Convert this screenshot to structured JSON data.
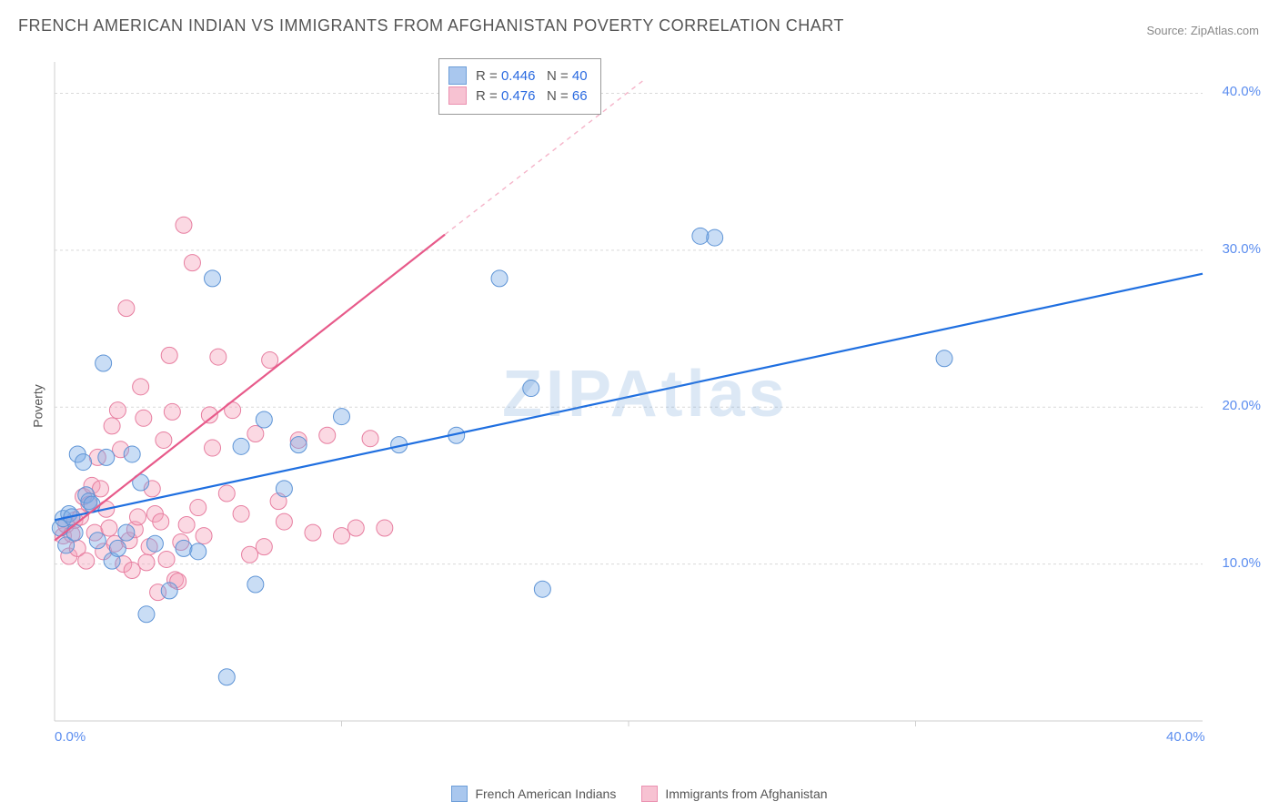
{
  "title": "FRENCH AMERICAN INDIAN VS IMMIGRANTS FROM AFGHANISTAN POVERTY CORRELATION CHART",
  "source": {
    "prefix": "Source: ",
    "name": "ZipAtlas.com"
  },
  "watermark": "ZIPAtlas",
  "y_axis_label": "Poverty",
  "chart": {
    "type": "scatter",
    "background_color": "#ffffff",
    "grid_color": "#d9d9d9",
    "axis_line_color": "#cfcfcf",
    "xlim": [
      0,
      40
    ],
    "ylim": [
      0,
      42
    ],
    "xtick_values": [
      0,
      40
    ],
    "xtick_labels": [
      "0.0%",
      "40.0%"
    ],
    "ytick_values": [
      10,
      20,
      30,
      40
    ],
    "ytick_labels": [
      "10.0%",
      "20.0%",
      "30.0%",
      "40.0%"
    ],
    "tick_label_color": "#5b8def",
    "y_label_color": "#555555",
    "marker_radius": 9,
    "marker_stroke_width": 1,
    "trend_line_width": 2.2,
    "series": [
      {
        "key": "blue",
        "label": "French American Indians",
        "fill": "rgba(120,170,230,0.40)",
        "stroke": "#5e94d6",
        "swatch_fill": "#a9c7ee",
        "swatch_border": "#6d9ed8",
        "line_color": "#1f6fe0",
        "line_dash_color": "#1f6fe0",
        "stats": {
          "R": "0.446",
          "N": "40"
        },
        "trend": {
          "x1": 0,
          "y1": 12.8,
          "x2": 40,
          "y2": 28.5
        },
        "points": [
          [
            0.2,
            12.3
          ],
          [
            0.3,
            12.9
          ],
          [
            0.4,
            11.2
          ],
          [
            0.5,
            13.2
          ],
          [
            0.6,
            13.0
          ],
          [
            0.7,
            12.0
          ],
          [
            0.8,
            17.0
          ],
          [
            1.0,
            16.5
          ],
          [
            1.1,
            14.4
          ],
          [
            1.2,
            14.0
          ],
          [
            1.3,
            13.8
          ],
          [
            1.5,
            11.5
          ],
          [
            1.7,
            22.8
          ],
          [
            1.8,
            16.8
          ],
          [
            2.0,
            10.2
          ],
          [
            2.2,
            11.0
          ],
          [
            2.5,
            12.0
          ],
          [
            2.7,
            17.0
          ],
          [
            3.0,
            15.2
          ],
          [
            3.2,
            6.8
          ],
          [
            3.5,
            11.3
          ],
          [
            4.0,
            8.3
          ],
          [
            4.5,
            11.0
          ],
          [
            5.0,
            10.8
          ],
          [
            5.5,
            28.2
          ],
          [
            6.0,
            2.8
          ],
          [
            6.5,
            17.5
          ],
          [
            7.0,
            8.7
          ],
          [
            7.3,
            19.2
          ],
          [
            8.0,
            14.8
          ],
          [
            8.5,
            17.6
          ],
          [
            10.0,
            19.4
          ],
          [
            12.0,
            17.6
          ],
          [
            15.5,
            28.2
          ],
          [
            16.6,
            21.2
          ],
          [
            17.0,
            8.4
          ],
          [
            23.0,
            30.8
          ],
          [
            31.0,
            23.1
          ],
          [
            22.5,
            30.9
          ],
          [
            14.0,
            18.2
          ]
        ]
      },
      {
        "key": "pink",
        "label": "Immigrants from Afghanistan",
        "fill": "rgba(244,160,185,0.40)",
        "stroke": "#e77ea0",
        "swatch_fill": "#f7c2d2",
        "swatch_border": "#eb91b1",
        "line_color": "#e75a8a",
        "line_dash_color": "#f5b4c9",
        "stats": {
          "R": "0.476",
          "N": "66"
        },
        "trend": {
          "x1": 0,
          "y1": 11.5,
          "x2": 13.6,
          "y2": 31.0,
          "dash_x2": 20.5,
          "dash_y2": 40.8
        },
        "points": [
          [
            0.3,
            11.8
          ],
          [
            0.4,
            12.5
          ],
          [
            0.5,
            10.5
          ],
          [
            0.6,
            11.9
          ],
          [
            0.7,
            12.8
          ],
          [
            0.8,
            11.0
          ],
          [
            0.9,
            13.0
          ],
          [
            1.0,
            14.3
          ],
          [
            1.1,
            10.2
          ],
          [
            1.2,
            13.8
          ],
          [
            1.3,
            15.0
          ],
          [
            1.4,
            12.0
          ],
          [
            1.5,
            16.8
          ],
          [
            1.6,
            14.8
          ],
          [
            1.7,
            10.8
          ],
          [
            1.8,
            13.5
          ],
          [
            1.9,
            12.3
          ],
          [
            2.0,
            18.8
          ],
          [
            2.1,
            11.3
          ],
          [
            2.2,
            19.8
          ],
          [
            2.3,
            17.3
          ],
          [
            2.4,
            10.0
          ],
          [
            2.5,
            26.3
          ],
          [
            2.6,
            11.5
          ],
          [
            2.7,
            9.6
          ],
          [
            2.8,
            12.2
          ],
          [
            2.9,
            13.0
          ],
          [
            3.0,
            21.3
          ],
          [
            3.1,
            19.3
          ],
          [
            3.2,
            10.1
          ],
          [
            3.3,
            11.1
          ],
          [
            3.4,
            14.8
          ],
          [
            3.5,
            13.2
          ],
          [
            3.6,
            8.2
          ],
          [
            3.7,
            12.7
          ],
          [
            3.8,
            17.9
          ],
          [
            3.9,
            10.3
          ],
          [
            4.0,
            23.3
          ],
          [
            4.1,
            19.7
          ],
          [
            4.2,
            9.0
          ],
          [
            4.3,
            8.9
          ],
          [
            4.4,
            11.4
          ],
          [
            4.5,
            31.6
          ],
          [
            4.6,
            12.5
          ],
          [
            4.8,
            29.2
          ],
          [
            5.0,
            13.6
          ],
          [
            5.2,
            11.8
          ],
          [
            5.4,
            19.5
          ],
          [
            5.5,
            17.4
          ],
          [
            5.7,
            23.2
          ],
          [
            6.0,
            14.5
          ],
          [
            6.2,
            19.8
          ],
          [
            6.5,
            13.2
          ],
          [
            6.8,
            10.6
          ],
          [
            7.0,
            18.3
          ],
          [
            7.3,
            11.1
          ],
          [
            7.5,
            23.0
          ],
          [
            7.8,
            14.0
          ],
          [
            8.0,
            12.7
          ],
          [
            8.5,
            17.9
          ],
          [
            9.0,
            12.0
          ],
          [
            9.5,
            18.2
          ],
          [
            10.0,
            11.8
          ],
          [
            10.5,
            12.3
          ],
          [
            11.0,
            18.0
          ],
          [
            11.5,
            12.3
          ]
        ]
      }
    ]
  },
  "legends": {
    "bottom": [
      "French American Indians",
      "Immigrants from Afghanistan"
    ],
    "stats_rows": [
      "blue",
      "pink"
    ]
  }
}
